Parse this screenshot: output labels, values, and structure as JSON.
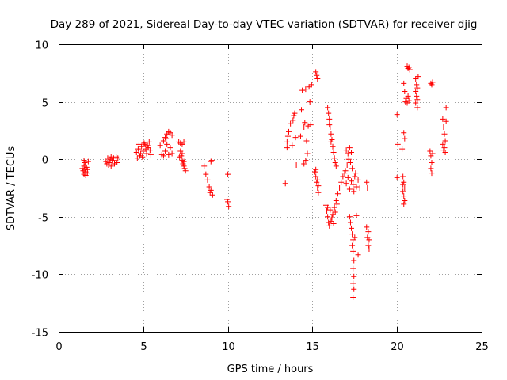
{
  "chart_data": {
    "type": "scatter",
    "title": "Day 289 of 2021, Sidereal Day-to-day VTEC variation (SDTVAR) for receiver djig",
    "xlabel": "GPS time / hours",
    "ylabel": "SDTVAR / TECUs",
    "xlim": [
      0,
      25
    ],
    "ylim": [
      -15,
      10
    ],
    "xticks": [
      0,
      5,
      10,
      15,
      20,
      25
    ],
    "yticks": [
      -15,
      -10,
      -5,
      0,
      5,
      10
    ],
    "xtick_labels": [
      "0",
      "5",
      "10",
      "15",
      "20",
      "25"
    ],
    "ytick_labels": [
      "-15",
      "-10",
      "-5",
      "0",
      "5",
      "10"
    ],
    "grid": true,
    "marker": "+",
    "marker_color": "#ff0000",
    "series": [
      {
        "name": "SDTVAR",
        "points": [
          [
            1.5,
            -0.1
          ],
          [
            1.55,
            -0.3
          ],
          [
            1.6,
            -0.5
          ],
          [
            1.65,
            -0.7
          ],
          [
            1.7,
            -0.9
          ],
          [
            1.5,
            -1.3
          ],
          [
            1.6,
            -1.1
          ],
          [
            1.55,
            -0.9
          ],
          [
            1.45,
            -1.0
          ],
          [
            1.6,
            -1.4
          ],
          [
            1.7,
            -1.2
          ],
          [
            1.5,
            -0.6
          ],
          [
            1.75,
            -0.2
          ],
          [
            1.4,
            -0.8
          ],
          [
            2.8,
            -0.2
          ],
          [
            2.9,
            0.1
          ],
          [
            3.0,
            -0.3
          ],
          [
            2.85,
            -0.4
          ],
          [
            3.1,
            0.2
          ],
          [
            3.2,
            -0.1
          ],
          [
            2.95,
            -0.5
          ],
          [
            3.05,
            0.0
          ],
          [
            3.25,
            0.1
          ],
          [
            3.3,
            -0.4
          ],
          [
            3.4,
            0.2
          ],
          [
            3.45,
            -0.3
          ],
          [
            3.5,
            0.1
          ],
          [
            3.1,
            -0.6
          ],
          [
            4.6,
            0.6
          ],
          [
            4.7,
            0.9
          ],
          [
            4.8,
            0.3
          ],
          [
            4.9,
            1.1
          ],
          [
            5.0,
            0.7
          ],
          [
            5.1,
            1.3
          ],
          [
            5.2,
            0.5
          ],
          [
            5.3,
            1.0
          ],
          [
            5.4,
            0.8
          ],
          [
            4.75,
            1.3
          ],
          [
            4.95,
            0.2
          ],
          [
            5.15,
            0.9
          ],
          [
            5.35,
            1.5
          ],
          [
            5.45,
            0.4
          ],
          [
            4.65,
            0.1
          ],
          [
            5.05,
            1.4
          ],
          [
            5.25,
            1.2
          ],
          [
            4.85,
            0.5
          ],
          [
            6.0,
            1.2
          ],
          [
            6.1,
            0.4
          ],
          [
            6.2,
            1.6
          ],
          [
            6.3,
            1.9
          ],
          [
            6.4,
            2.2
          ],
          [
            6.5,
            2.4
          ],
          [
            6.6,
            2.3
          ],
          [
            6.7,
            2.1
          ],
          [
            6.4,
            1.3
          ],
          [
            6.3,
            0.7
          ],
          [
            6.5,
            0.4
          ],
          [
            6.6,
            1.0
          ],
          [
            6.7,
            0.5
          ],
          [
            6.2,
            0.3
          ],
          [
            6.35,
            1.8
          ],
          [
            7.1,
            1.5
          ],
          [
            7.2,
            1.4
          ],
          [
            7.3,
            1.3
          ],
          [
            7.4,
            1.5
          ],
          [
            7.2,
            0.7
          ],
          [
            7.25,
            0.3
          ],
          [
            7.3,
            -0.1
          ],
          [
            7.35,
            -0.4
          ],
          [
            7.4,
            -0.6
          ],
          [
            7.45,
            -0.8
          ],
          [
            7.5,
            -1.0
          ],
          [
            7.3,
            0.5
          ],
          [
            7.15,
            0.2
          ],
          [
            7.4,
            -0.2
          ],
          [
            8.6,
            -0.6
          ],
          [
            8.7,
            -1.3
          ],
          [
            8.8,
            -1.8
          ],
          [
            8.9,
            -2.4
          ],
          [
            9.0,
            -2.7
          ],
          [
            9.1,
            -3.1
          ],
          [
            9.0,
            -0.2
          ],
          [
            9.05,
            -0.1
          ],
          [
            8.95,
            -2.9
          ],
          [
            10.0,
            -1.3
          ],
          [
            9.95,
            -3.5
          ],
          [
            10.0,
            -3.7
          ],
          [
            10.05,
            -4.1
          ],
          [
            13.4,
            -2.1
          ],
          [
            13.5,
            1.0
          ],
          [
            13.55,
            2.0
          ],
          [
            13.6,
            2.4
          ],
          [
            13.5,
            1.5
          ],
          [
            13.7,
            3.1
          ],
          [
            13.9,
            3.8
          ],
          [
            13.95,
            4.0
          ],
          [
            14.0,
            1.9
          ],
          [
            14.05,
            -0.5
          ],
          [
            13.8,
            1.2
          ],
          [
            13.85,
            3.4
          ],
          [
            14.3,
            2.0
          ],
          [
            14.35,
            4.3
          ],
          [
            14.4,
            6.0
          ],
          [
            14.5,
            2.8
          ],
          [
            14.55,
            3.2
          ],
          [
            14.6,
            6.1
          ],
          [
            14.65,
            1.6
          ],
          [
            14.7,
            0.5
          ],
          [
            14.75,
            2.9
          ],
          [
            14.8,
            6.3
          ],
          [
            14.85,
            5.0
          ],
          [
            14.9,
            3.0
          ],
          [
            14.95,
            6.5
          ],
          [
            14.5,
            -0.4
          ],
          [
            14.6,
            -0.1
          ],
          [
            15.2,
            7.6
          ],
          [
            15.25,
            7.3
          ],
          [
            15.3,
            7.0
          ],
          [
            15.15,
            -1.1
          ],
          [
            15.2,
            -1.5
          ],
          [
            15.25,
            -2.0
          ],
          [
            15.3,
            -2.5
          ],
          [
            15.35,
            -2.9
          ],
          [
            15.2,
            -0.9
          ],
          [
            15.3,
            -1.8
          ],
          [
            15.35,
            -2.3
          ],
          [
            15.9,
            4.5
          ],
          [
            15.95,
            4.0
          ],
          [
            16.0,
            3.5
          ],
          [
            16.05,
            2.8
          ],
          [
            16.1,
            2.2
          ],
          [
            16.15,
            1.7
          ],
          [
            16.2,
            1.1
          ],
          [
            16.25,
            0.6
          ],
          [
            16.3,
            0.1
          ],
          [
            16.35,
            -0.3
          ],
          [
            16.4,
            -0.6
          ],
          [
            16.0,
            3.0
          ],
          [
            16.1,
            1.5
          ],
          [
            15.8,
            -4.0
          ],
          [
            15.85,
            -4.5
          ],
          [
            15.9,
            -5.0
          ],
          [
            15.95,
            -5.5
          ],
          [
            16.0,
            -5.8
          ],
          [
            16.1,
            -5.4
          ],
          [
            16.2,
            -4.8
          ],
          [
            16.3,
            -4.2
          ],
          [
            16.4,
            -3.6
          ],
          [
            16.5,
            -3.0
          ],
          [
            16.6,
            -2.5
          ],
          [
            16.7,
            -2.0
          ],
          [
            16.8,
            -1.5
          ],
          [
            16.9,
            -1.2
          ],
          [
            16.05,
            -4.4
          ],
          [
            16.15,
            -5.1
          ],
          [
            15.9,
            -4.2
          ],
          [
            16.25,
            -5.6
          ],
          [
            16.35,
            -4.6
          ],
          [
            16.45,
            -3.9
          ],
          [
            17.0,
            0.8
          ],
          [
            17.1,
            0.5
          ],
          [
            17.2,
            1.0
          ],
          [
            17.3,
            0.6
          ],
          [
            17.15,
            0.0
          ],
          [
            17.05,
            -0.5
          ],
          [
            16.95,
            -1.0
          ],
          [
            17.25,
            -0.3
          ],
          [
            17.35,
            -0.8
          ],
          [
            17.1,
            -1.6
          ],
          [
            17.3,
            -1.9
          ],
          [
            17.4,
            -2.2
          ],
          [
            17.2,
            -2.6
          ],
          [
            17.0,
            -2.1
          ],
          [
            17.5,
            -1.5
          ],
          [
            17.6,
            -2.4
          ],
          [
            17.45,
            -2.8
          ],
          [
            17.55,
            -1.2
          ],
          [
            17.7,
            -1.8
          ],
          [
            17.8,
            -2.5
          ],
          [
            17.2,
            -5.0
          ],
          [
            17.25,
            -5.5
          ],
          [
            17.3,
            -6.0
          ],
          [
            17.35,
            -6.5
          ],
          [
            17.4,
            -7.0
          ],
          [
            17.35,
            -7.5
          ],
          [
            17.4,
            -8.0
          ],
          [
            17.45,
            -8.8
          ],
          [
            17.4,
            -9.5
          ],
          [
            17.45,
            -10.2
          ],
          [
            17.4,
            -10.8
          ],
          [
            17.45,
            -11.3
          ],
          [
            17.4,
            -12.0
          ],
          [
            17.5,
            -6.8
          ],
          [
            17.6,
            -4.9
          ],
          [
            17.7,
            -8.3
          ],
          [
            18.2,
            -2.0
          ],
          [
            18.25,
            -2.5
          ],
          [
            18.3,
            -6.3
          ],
          [
            18.35,
            -7.0
          ],
          [
            18.3,
            -7.5
          ],
          [
            18.35,
            -7.8
          ],
          [
            18.25,
            -6.8
          ],
          [
            18.2,
            -5.9
          ],
          [
            20.0,
            3.9
          ],
          [
            20.05,
            1.3
          ],
          [
            20.0,
            -1.6
          ],
          [
            20.35,
            -1.5
          ],
          [
            20.4,
            -2.0
          ],
          [
            20.45,
            -2.5
          ],
          [
            20.35,
            -2.8
          ],
          [
            20.4,
            -3.2
          ],
          [
            20.45,
            -3.6
          ],
          [
            20.4,
            -3.9
          ],
          [
            20.3,
            0.9
          ],
          [
            20.4,
            2.3
          ],
          [
            20.45,
            1.8
          ],
          [
            20.35,
            -2.2
          ],
          [
            20.6,
            8.1
          ],
          [
            20.65,
            7.9
          ],
          [
            20.7,
            8.0
          ],
          [
            20.75,
            7.8
          ],
          [
            20.5,
            5.0
          ],
          [
            20.55,
            5.3
          ],
          [
            20.6,
            4.9
          ],
          [
            20.65,
            5.5
          ],
          [
            20.7,
            5.1
          ],
          [
            20.4,
            6.6
          ],
          [
            20.45,
            5.9
          ],
          [
            21.1,
            7.0
          ],
          [
            21.15,
            6.5
          ],
          [
            21.2,
            6.2
          ],
          [
            21.1,
            5.9
          ],
          [
            21.15,
            5.5
          ],
          [
            21.2,
            5.2
          ],
          [
            21.1,
            4.9
          ],
          [
            21.2,
            4.5
          ],
          [
            21.25,
            7.2
          ],
          [
            22.0,
            6.6
          ],
          [
            22.05,
            6.5
          ],
          [
            22.1,
            6.7
          ],
          [
            21.95,
            0.7
          ],
          [
            22.0,
            0.3
          ],
          [
            22.05,
            -0.3
          ],
          [
            22.0,
            -0.8
          ],
          [
            22.05,
            -1.2
          ],
          [
            22.1,
            0.5
          ],
          [
            22.7,
            3.5
          ],
          [
            22.75,
            2.8
          ],
          [
            22.8,
            2.2
          ],
          [
            22.85,
            1.6
          ],
          [
            22.8,
            1.0
          ],
          [
            22.85,
            0.6
          ],
          [
            22.9,
            4.5
          ],
          [
            22.7,
            1.3
          ],
          [
            22.75,
            0.8
          ],
          [
            22.9,
            3.3
          ]
        ]
      }
    ]
  }
}
